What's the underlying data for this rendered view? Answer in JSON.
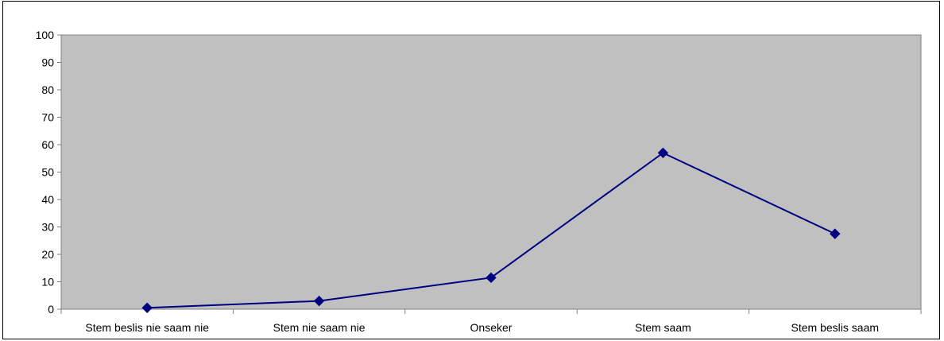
{
  "chart_data": {
    "type": "line",
    "categories": [
      "Stem beslis nie saam nie",
      "Stem nie saam nie",
      "Onseker",
      "Stem saam",
      "Stem beslis saam"
    ],
    "values": [
      0.5,
      3,
      11.5,
      57,
      27.5
    ],
    "ylim": [
      0,
      100
    ],
    "yticks": [
      "0",
      "10",
      "20",
      "30",
      "40",
      "50",
      "60",
      "70",
      "80",
      "90",
      "100"
    ],
    "grid": false,
    "legend": "none"
  },
  "colors": {
    "plot_background": "#c0c0c0",
    "line": "#000080",
    "marker": "#000080",
    "axis": "#808080"
  }
}
